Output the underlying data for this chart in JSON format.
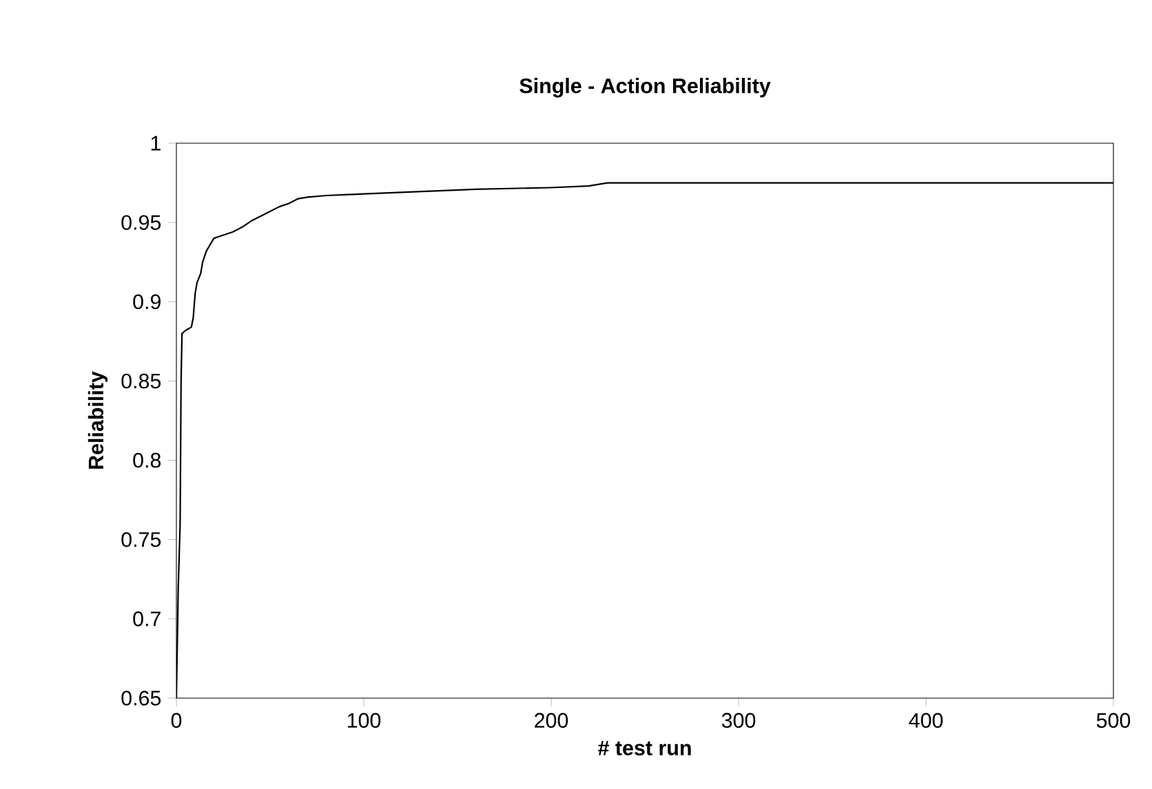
{
  "chart_data": {
    "type": "line",
    "title": "Single - Action Reliability",
    "xlabel": "# test run",
    "ylabel": "Reliability",
    "x": [
      0,
      1,
      2,
      2.5,
      3,
      5,
      8,
      9,
      10,
      11,
      13,
      14,
      16,
      18,
      20,
      25,
      30,
      35,
      40,
      45,
      50,
      55,
      60,
      65,
      70,
      80,
      100,
      120,
      140,
      160,
      200,
      220,
      230,
      300,
      400,
      500
    ],
    "values": [
      0.65,
      0.72,
      0.76,
      0.85,
      0.88,
      0.882,
      0.884,
      0.89,
      0.905,
      0.912,
      0.918,
      0.925,
      0.932,
      0.936,
      0.94,
      0.942,
      0.944,
      0.947,
      0.951,
      0.954,
      0.957,
      0.96,
      0.962,
      0.965,
      0.966,
      0.967,
      0.968,
      0.969,
      0.97,
      0.971,
      0.972,
      0.973,
      0.975,
      0.975,
      0.975,
      0.975
    ],
    "color": "#000000",
    "xlim": [
      0,
      500
    ],
    "ylim": [
      0.65,
      1
    ],
    "xticks": [
      0,
      100,
      200,
      300,
      400,
      500
    ],
    "yticks": [
      0.65,
      0.7,
      0.75,
      0.8,
      0.85,
      0.9,
      0.95,
      1
    ],
    "grid": false,
    "marker": "none",
    "line_style": "solid"
  }
}
